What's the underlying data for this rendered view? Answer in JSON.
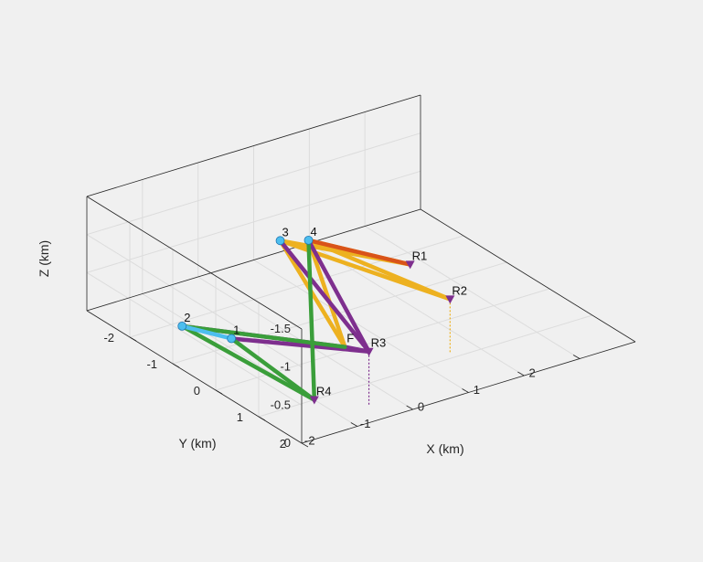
{
  "chart_data": {
    "type": "line3d",
    "xlabel": "X (km)",
    "ylabel": "Y (km)",
    "zlabel": "Z (km)",
    "xlim": [
      -3,
      3
    ],
    "ylim": [
      -3,
      2
    ],
    "zlim": [
      -1.5,
      0
    ],
    "zdir": "reverse",
    "xticks": [
      -2,
      -1,
      0,
      1,
      2
    ],
    "yticks": [
      -2,
      -1,
      0,
      1,
      2
    ],
    "zticks": [
      -1.5,
      -1,
      -0.5,
      0
    ],
    "grid": true,
    "points": [
      {
        "label": "1",
        "x": -2.1,
        "y": -0.8,
        "z": -0.2
      },
      {
        "label": "2",
        "x": -2.6,
        "y": -1.3,
        "z": -0.3
      },
      {
        "label": "3",
        "x": 0.4,
        "y": -2.9,
        "z": -0.2
      },
      {
        "label": "4",
        "x": 0.6,
        "y": -2.5,
        "z": -0.3
      },
      {
        "label": "R1",
        "x": 1.5,
        "y": -1.3,
        "z": -0.2
      },
      {
        "label": "R2",
        "x": 1.6,
        "y": -0.5,
        "z": 0
      },
      {
        "label": "R3",
        "x": -0.4,
        "y": 0.2,
        "z": 0
      },
      {
        "label": "R4",
        "x": -2.0,
        "y": 1.0,
        "z": 0
      },
      {
        "label": "F",
        "x": -0.6,
        "y": -0.1,
        "z": 0
      }
    ],
    "series": [
      {
        "color": "#EDB120",
        "segments": [
          [
            "3",
            "R1"
          ],
          [
            "3",
            "R2"
          ],
          [
            "4",
            "R1"
          ],
          [
            "4",
            "R2"
          ],
          [
            "3",
            "F"
          ],
          [
            "4",
            "F"
          ]
        ]
      },
      {
        "color": "#D95319",
        "segments": [
          [
            "4",
            "R1"
          ]
        ]
      },
      {
        "color": "#7E2F8E",
        "segments": [
          [
            "3",
            "R3"
          ],
          [
            "4",
            "R3"
          ],
          [
            "2",
            "F"
          ],
          [
            "1",
            "R3"
          ],
          [
            "F",
            "R3"
          ]
        ]
      },
      {
        "color": "#3A9E3A",
        "segments": [
          [
            "2",
            "R4"
          ],
          [
            "1",
            "R4"
          ],
          [
            "4",
            "R4"
          ],
          [
            "2",
            "F"
          ]
        ]
      },
      {
        "color": "#4DBEEE",
        "segments": [
          [
            "1",
            "2"
          ]
        ]
      }
    ]
  }
}
